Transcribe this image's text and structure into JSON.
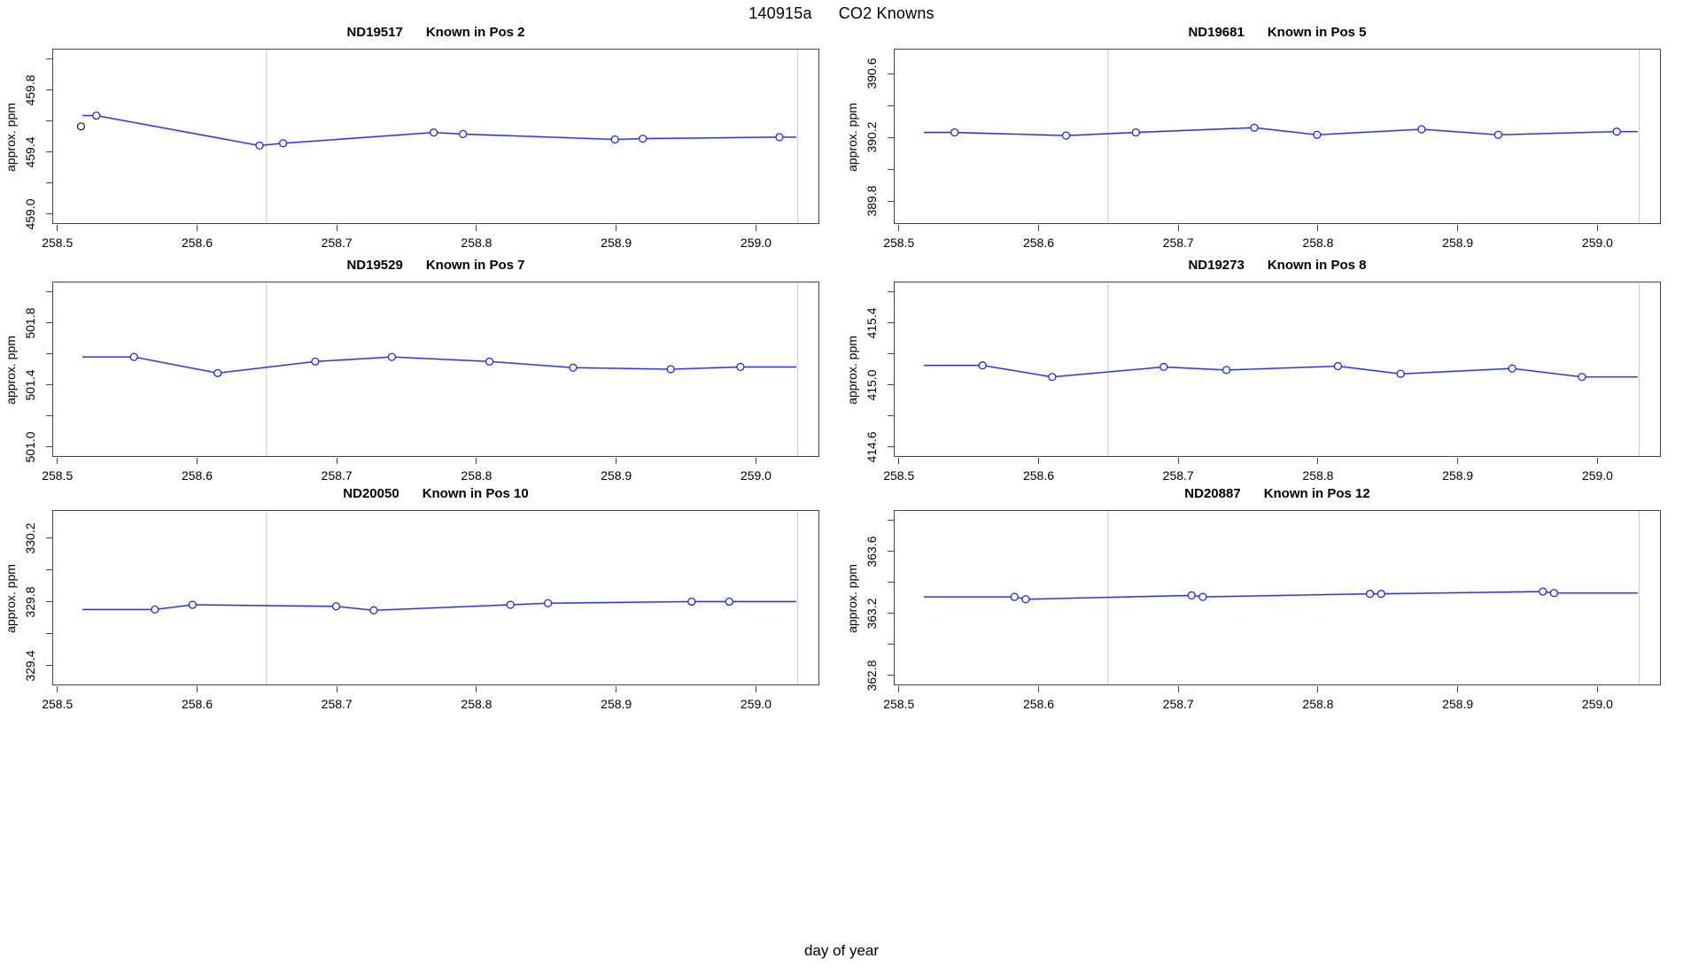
{
  "page": {
    "main_title_left": "140915a",
    "main_title_right": "CO2 Knowns",
    "xlabel": "day of year"
  },
  "chart_data": {
    "type": "line",
    "title": "140915a   CO2 Knowns",
    "xlabel": "day of year",
    "ylabel": "approx. ppm",
    "xlim": [
      258.497,
      259.046
    ],
    "grid": false,
    "legend": "none",
    "marker": "open-circle",
    "xticks": [
      {
        "v": 258.5,
        "label": "258.5"
      },
      {
        "v": 258.6,
        "label": "258.6"
      },
      {
        "v": 258.7,
        "label": "258.7"
      },
      {
        "v": 258.8,
        "label": "258.8"
      },
      {
        "v": 258.9,
        "label": "258.9"
      },
      {
        "v": 259.0,
        "label": "259.0"
      }
    ],
    "vlines": [
      258.65,
      259.031
    ],
    "colors": {
      "line": "#3232d0",
      "line_halo": "#9f9fe6",
      "marker": "#2525cc",
      "outlier": "#222222",
      "vline": "#c9c9c9",
      "axis": "#454545",
      "text": "#000000"
    },
    "panels": [
      {
        "title_left": "ND19517",
        "title_right": "Known in Pos 2",
        "ylabel": "approx. ppm",
        "ylim": [
          458.93,
          460.06
        ],
        "yticks": [
          {
            "v": 459.0,
            "label": "459.0"
          },
          {
            "v": 459.2
          },
          {
            "v": 459.4,
            "label": "459.4"
          },
          {
            "v": 459.6
          },
          {
            "v": 459.8,
            "label": "459.8"
          },
          {
            "v": 460.0
          }
        ],
        "line_extend_x": [
          258.518,
          259.03
        ],
        "points": [
          [
            258.528,
            459.63
          ],
          [
            258.645,
            459.435
          ],
          [
            258.662,
            459.45
          ],
          [
            258.77,
            459.52
          ],
          [
            258.791,
            459.51
          ],
          [
            258.9,
            459.475
          ],
          [
            258.92,
            459.48
          ],
          [
            259.018,
            459.49
          ]
        ],
        "outlier_points": [
          [
            258.517,
            459.56
          ]
        ]
      },
      {
        "title_left": "ND19681",
        "title_right": "Known in Pos 5",
        "ylabel": "approx. ppm",
        "ylim": [
          389.65,
          390.75
        ],
        "yticks": [
          {
            "v": 389.8,
            "label": "389.8"
          },
          {
            "v": 390.0
          },
          {
            "v": 390.2,
            "label": "390.2"
          },
          {
            "v": 390.4
          },
          {
            "v": 390.6,
            "label": "390.6"
          }
        ],
        "line_extend_x": [
          258.518,
          259.03
        ],
        "points": [
          [
            258.54,
            390.225
          ],
          [
            258.62,
            390.205
          ],
          [
            258.67,
            390.225
          ],
          [
            258.755,
            390.255
          ],
          [
            258.8,
            390.21
          ],
          [
            258.875,
            390.245
          ],
          [
            258.93,
            390.21
          ],
          [
            259.015,
            390.23
          ]
        ],
        "outlier_points": []
      },
      {
        "title_left": "ND19529",
        "title_right": "Known in Pos 7",
        "ylabel": "approx. ppm",
        "ylim": [
          500.93,
          502.06
        ],
        "yticks": [
          {
            "v": 501.0,
            "label": "501.0"
          },
          {
            "v": 501.2
          },
          {
            "v": 501.4,
            "label": "501.4"
          },
          {
            "v": 501.6
          },
          {
            "v": 501.8,
            "label": "501.8"
          },
          {
            "v": 502.0
          }
        ],
        "line_extend_x": [
          258.518,
          259.03
        ],
        "points": [
          [
            258.555,
            501.575
          ],
          [
            258.615,
            501.47
          ],
          [
            258.685,
            501.545
          ],
          [
            258.74,
            501.575
          ],
          [
            258.81,
            501.545
          ],
          [
            258.87,
            501.505
          ],
          [
            258.94,
            501.495
          ],
          [
            258.99,
            501.51
          ]
        ],
        "outlier_points": []
      },
      {
        "title_left": "ND19273",
        "title_right": "Known in Pos 8",
        "ylabel": "approx. ppm",
        "ylim": [
          414.53,
          415.66
        ],
        "yticks": [
          {
            "v": 414.6,
            "label": "414.6"
          },
          {
            "v": 414.8
          },
          {
            "v": 415.0,
            "label": "415.0"
          },
          {
            "v": 415.2
          },
          {
            "v": 415.4,
            "label": "415.4"
          },
          {
            "v": 415.6
          }
        ],
        "line_extend_x": [
          258.518,
          259.03
        ],
        "points": [
          [
            258.56,
            415.12
          ],
          [
            258.61,
            415.045
          ],
          [
            258.69,
            415.11
          ],
          [
            258.735,
            415.09
          ],
          [
            258.815,
            415.115
          ],
          [
            258.86,
            415.065
          ],
          [
            258.94,
            415.1
          ],
          [
            258.99,
            415.045
          ]
        ],
        "outlier_points": []
      },
      {
        "title_left": "ND20050",
        "title_right": "Known in Pos 10",
        "ylabel": "approx. ppm",
        "ylim": [
          329.27,
          330.37
        ],
        "yticks": [
          {
            "v": 329.4,
            "label": "329.4"
          },
          {
            "v": 329.6
          },
          {
            "v": 329.8,
            "label": "329.8"
          },
          {
            "v": 330.0
          },
          {
            "v": 330.2,
            "label": "330.2"
          }
        ],
        "line_extend_x": [
          258.518,
          259.03
        ],
        "points": [
          [
            258.57,
            329.745
          ],
          [
            258.597,
            329.775
          ],
          [
            258.7,
            329.765
          ],
          [
            258.727,
            329.74
          ],
          [
            258.825,
            329.775
          ],
          [
            258.852,
            329.785
          ],
          [
            258.955,
            329.795
          ],
          [
            258.982,
            329.795
          ]
        ],
        "outlier_points": []
      },
      {
        "title_left": "ND20887",
        "title_right": "Known in Pos 12",
        "ylabel": "approx. ppm",
        "ylim": [
          362.73,
          363.86
        ],
        "yticks": [
          {
            "v": 362.8,
            "label": "362.8"
          },
          {
            "v": 363.0
          },
          {
            "v": 363.2,
            "label": "363.2"
          },
          {
            "v": 363.4
          },
          {
            "v": 363.6,
            "label": "363.6"
          },
          {
            "v": 363.8
          }
        ],
        "line_extend_x": [
          258.518,
          259.03
        ],
        "points": [
          [
            258.583,
            363.3
          ],
          [
            258.591,
            363.285
          ],
          [
            258.71,
            363.31
          ],
          [
            258.718,
            363.3
          ],
          [
            258.838,
            363.32
          ],
          [
            258.846,
            363.32
          ],
          [
            258.962,
            363.335
          ],
          [
            258.97,
            363.325
          ]
        ],
        "outlier_points": []
      }
    ]
  }
}
